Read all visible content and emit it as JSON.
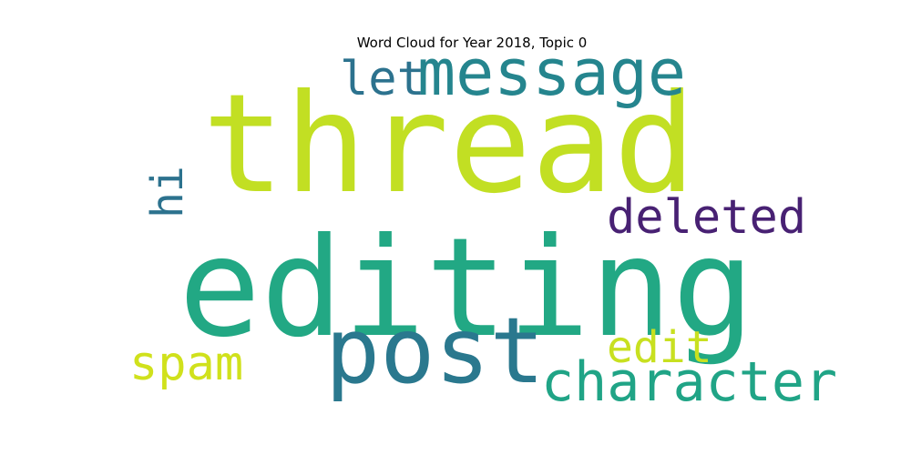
{
  "chart_data": {
    "type": "word_cloud",
    "title": "Word Cloud for Year 2018, Topic 0",
    "words": [
      {
        "text": "thread",
        "weight": 1.0,
        "color": "#c2df23",
        "orientation": "horizontal"
      },
      {
        "text": "editing",
        "weight": 0.97,
        "color": "#22a884",
        "orientation": "horizontal"
      },
      {
        "text": "post",
        "weight": 0.53,
        "color": "#2a788e",
        "orientation": "horizontal"
      },
      {
        "text": "message",
        "weight": 0.4,
        "color": "#25858e",
        "orientation": "horizontal"
      },
      {
        "text": "character",
        "weight": 0.34,
        "color": "#20a486",
        "orientation": "horizontal"
      },
      {
        "text": "deleted",
        "weight": 0.3,
        "color": "#482173",
        "orientation": "horizontal"
      },
      {
        "text": "let",
        "weight": 0.3,
        "color": "#2c728e",
        "orientation": "horizontal"
      },
      {
        "text": "spam",
        "weight": 0.3,
        "color": "#d0e11c",
        "orientation": "horizontal"
      },
      {
        "text": "edit",
        "weight": 0.28,
        "color": "#c8e020",
        "orientation": "horizontal"
      },
      {
        "text": "hi",
        "weight": 0.26,
        "color": "#2c728e",
        "orientation": "vertical"
      }
    ]
  }
}
